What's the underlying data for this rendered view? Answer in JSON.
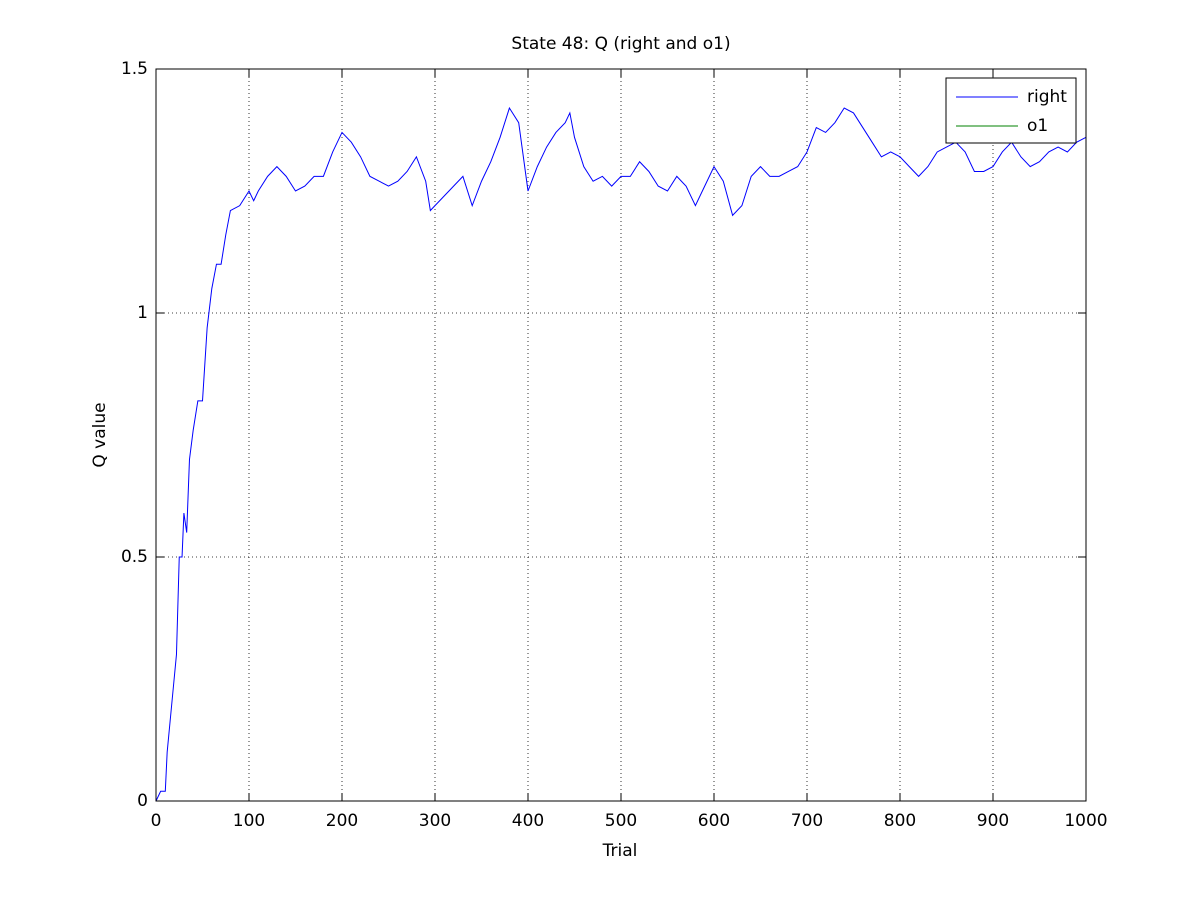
{
  "chart_data": {
    "type": "line",
    "title": "State 48: Q (right and o1)",
    "x_label": "Trial",
    "y_label": "Q value",
    "xlim": [
      0,
      1000
    ],
    "xticks": [
      0,
      100,
      200,
      300,
      400,
      500,
      600,
      700,
      800,
      900,
      1000
    ],
    "ylim": [
      0,
      1.5
    ],
    "yticks": [
      0,
      0.5,
      1,
      1.5
    ],
    "grid": true,
    "legend": "northeast",
    "series": [
      {
        "name": "right",
        "color": "#0000ff",
        "x": [
          0,
          5,
          10,
          12,
          18,
          22,
          25,
          28,
          30,
          33,
          36,
          40,
          45,
          50,
          55,
          60,
          65,
          70,
          75,
          80,
          90,
          100,
          105,
          110,
          120,
          130,
          140,
          150,
          160,
          170,
          180,
          190,
          200,
          210,
          220,
          230,
          240,
          250,
          260,
          270,
          280,
          290,
          295,
          300,
          310,
          320,
          330,
          340,
          350,
          360,
          370,
          380,
          390,
          400,
          410,
          420,
          430,
          440,
          445,
          450,
          460,
          470,
          480,
          490,
          500,
          510,
          520,
          530,
          540,
          550,
          560,
          570,
          580,
          590,
          600,
          610,
          620,
          630,
          640,
          650,
          660,
          670,
          680,
          690,
          700,
          710,
          720,
          730,
          740,
          750,
          760,
          770,
          780,
          790,
          800,
          810,
          820,
          830,
          840,
          850,
          860,
          870,
          880,
          890,
          900,
          910,
          920,
          930,
          940,
          950,
          960,
          970,
          980,
          990,
          1000
        ],
        "values": [
          0,
          0.02,
          0.02,
          0.1,
          0.22,
          0.3,
          0.5,
          0.5,
          0.59,
          0.55,
          0.7,
          0.76,
          0.82,
          0.82,
          0.97,
          1.05,
          1.1,
          1.1,
          1.16,
          1.21,
          1.22,
          1.25,
          1.23,
          1.25,
          1.28,
          1.3,
          1.28,
          1.25,
          1.26,
          1.28,
          1.28,
          1.33,
          1.37,
          1.35,
          1.32,
          1.28,
          1.27,
          1.26,
          1.27,
          1.29,
          1.32,
          1.27,
          1.21,
          1.22,
          1.24,
          1.26,
          1.28,
          1.22,
          1.27,
          1.31,
          1.36,
          1.42,
          1.39,
          1.25,
          1.3,
          1.34,
          1.37,
          1.39,
          1.41,
          1.36,
          1.3,
          1.27,
          1.28,
          1.26,
          1.28,
          1.28,
          1.31,
          1.29,
          1.26,
          1.25,
          1.28,
          1.26,
          1.22,
          1.26,
          1.3,
          1.27,
          1.2,
          1.22,
          1.28,
          1.3,
          1.28,
          1.28,
          1.29,
          1.3,
          1.33,
          1.38,
          1.37,
          1.39,
          1.42,
          1.41,
          1.38,
          1.35,
          1.32,
          1.33,
          1.32,
          1.3,
          1.28,
          1.3,
          1.33,
          1.34,
          1.35,
          1.33,
          1.29,
          1.29,
          1.3,
          1.33,
          1.35,
          1.32,
          1.3,
          1.31,
          1.33,
          1.34,
          1.33,
          1.35,
          1.36
        ]
      },
      {
        "name": "o1",
        "color": "#008000",
        "x": [
          0,
          1000
        ],
        "values": [
          0,
          0
        ]
      }
    ]
  }
}
